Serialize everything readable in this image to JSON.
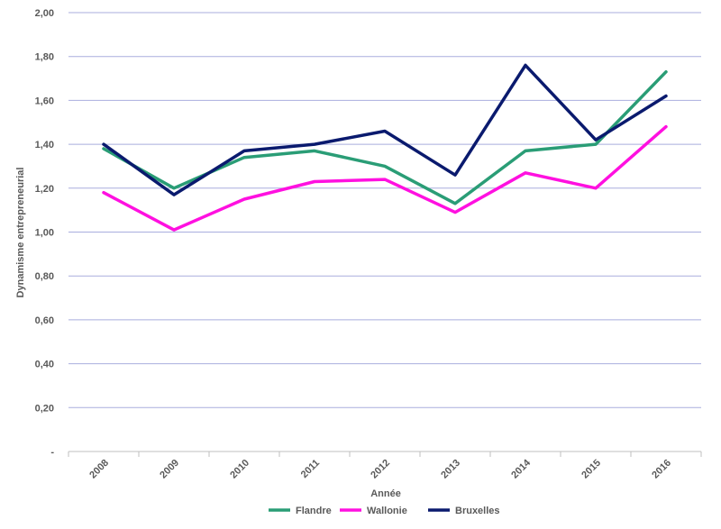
{
  "chart_data": {
    "type": "line",
    "x": [
      "2008",
      "2009",
      "2010",
      "2011",
      "2012",
      "2013",
      "2014",
      "2015",
      "2016"
    ],
    "xlabel": "Année",
    "ylabel": "Dynamisme entrepreneurial",
    "ylim": [
      0,
      2
    ],
    "yticks": [
      {
        "value": 0,
        "label": "-"
      },
      {
        "value": 0.2,
        "label": "0,20"
      },
      {
        "value": 0.4,
        "label": "0,40"
      },
      {
        "value": 0.6,
        "label": "0,60"
      },
      {
        "value": 0.8,
        "label": "0,80"
      },
      {
        "value": 1.0,
        "label": "1,00"
      },
      {
        "value": 1.2,
        "label": "1,20"
      },
      {
        "value": 1.4,
        "label": "1,40"
      },
      {
        "value": 1.6,
        "label": "1,60"
      },
      {
        "value": 1.8,
        "label": "1,80"
      },
      {
        "value": 2.0,
        "label": "2,00"
      }
    ],
    "grid": true,
    "legend_position": "bottom",
    "series": [
      {
        "name": "Flandre",
        "color": "#2a9d76",
        "values": [
          1.38,
          1.2,
          1.34,
          1.37,
          1.3,
          1.13,
          1.37,
          1.4,
          1.73
        ]
      },
      {
        "name": "Wallonie",
        "color": "#ff10e0",
        "values": [
          1.18,
          1.01,
          1.15,
          1.23,
          1.24,
          1.09,
          1.27,
          1.2,
          1.48
        ]
      },
      {
        "name": "Bruxelles",
        "color": "#0a1a6e",
        "values": [
          1.4,
          1.17,
          1.37,
          1.4,
          1.46,
          1.26,
          1.76,
          1.42,
          1.62
        ]
      }
    ]
  },
  "colors": {
    "gridline": "#a9aede",
    "axis": "#bfbfbf",
    "text": "#595959"
  }
}
